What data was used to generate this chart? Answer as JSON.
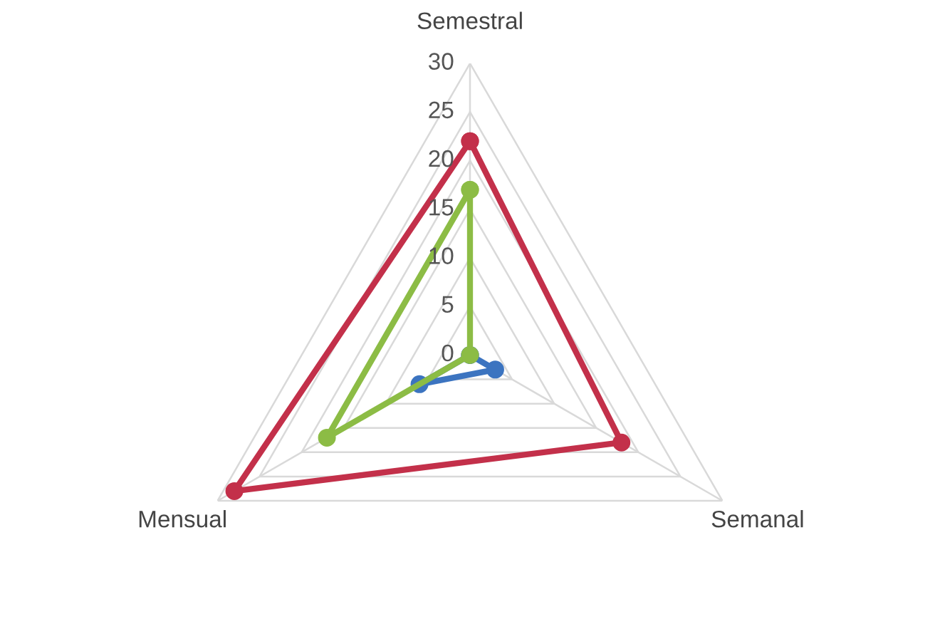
{
  "chart_data": {
    "type": "radar",
    "categories": [
      "Semestral",
      "Semanal",
      "Mensual"
    ],
    "series": [
      {
        "color": "#3c74c0",
        "values": [
          0,
          3,
          6
        ]
      },
      {
        "color": "#8cbc45",
        "values": [
          17,
          0,
          17
        ]
      },
      {
        "color": "#c3304a",
        "values": [
          22,
          18,
          28
        ]
      }
    ],
    "ylim": [
      0,
      30
    ],
    "yticks": [
      0,
      5,
      10,
      15,
      20,
      25,
      30
    ],
    "grid": true,
    "marker": "circle",
    "legend": false
  }
}
